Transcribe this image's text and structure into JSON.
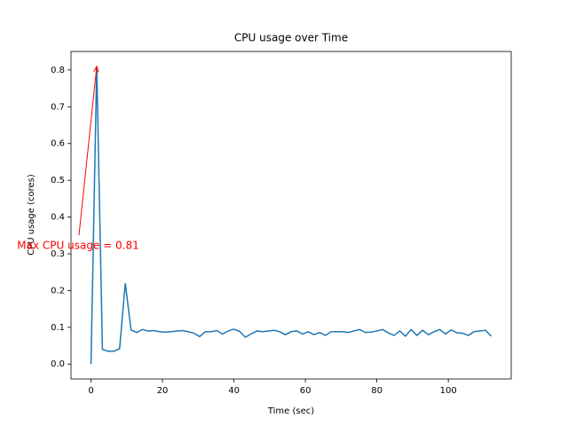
{
  "chart_data": {
    "type": "line",
    "title": "CPU usage over Time",
    "x_label": "Time (sec)",
    "y_label": "CPU usage (cores)",
    "annotation": "Max CPU usage = 0.81",
    "annotation_color": "#ff0000",
    "x": [
      0,
      1.6,
      3.2,
      4.8,
      6.4,
      8,
      9.6,
      11.2,
      12.8,
      14.4,
      16,
      17.6,
      19.2,
      20.8,
      22.4,
      24,
      25.6,
      27.2,
      28.8,
      30.4,
      32,
      33.6,
      35.2,
      36.8,
      38.4,
      40,
      41.6,
      43.2,
      44.8,
      46.4,
      48,
      49.6,
      51.2,
      52.8,
      54.4,
      56,
      57.6,
      59.2,
      60.8,
      62.4,
      64,
      65.6,
      67.2,
      68.8,
      70.4,
      72,
      73.6,
      75.2,
      76.8,
      78.4,
      80,
      81.6,
      83.2,
      84.8,
      86.4,
      88,
      89.6,
      91.2,
      92.8,
      94.4,
      96,
      97.6,
      99.2,
      100.8,
      102.4,
      104,
      105.6,
      107.2,
      108.8,
      110.4,
      112
    ],
    "series": [
      {
        "name": "CPU usage",
        "color": "#1f77b4",
        "values": [
          0,
          0.81,
          0.04,
          0.035,
          0.035,
          0.042,
          0.22,
          0.093,
          0.086,
          0.094,
          0.09,
          0.091,
          0.088,
          0.087,
          0.088,
          0.09,
          0.091,
          0.088,
          0.084,
          0.075,
          0.088,
          0.088,
          0.091,
          0.082,
          0.09,
          0.095,
          0.089,
          0.073,
          0.082,
          0.09,
          0.088,
          0.09,
          0.092,
          0.088,
          0.08,
          0.088,
          0.09,
          0.082,
          0.088,
          0.08,
          0.086,
          0.078,
          0.088,
          0.088,
          0.088,
          0.086,
          0.09,
          0.094,
          0.086,
          0.087,
          0.09,
          0.094,
          0.085,
          0.078,
          0.09,
          0.076,
          0.094,
          0.078,
          0.092,
          0.08,
          0.088,
          0.094,
          0.082,
          0.093,
          0.085,
          0.084,
          0.078,
          0.088,
          0.09,
          0.092,
          0.076
        ]
      }
    ],
    "xlim": [
      -5.6,
      117.6
    ],
    "xticks": [
      0,
      20,
      40,
      60,
      80,
      100
    ],
    "ylim": [
      -0.0405,
      0.8505
    ],
    "yticks": [
      {
        "value": 0,
        "label": "0.0"
      },
      0.1,
      0.2,
      0.3,
      0.4,
      0.5,
      0.6,
      0.7,
      0.8
    ]
  }
}
